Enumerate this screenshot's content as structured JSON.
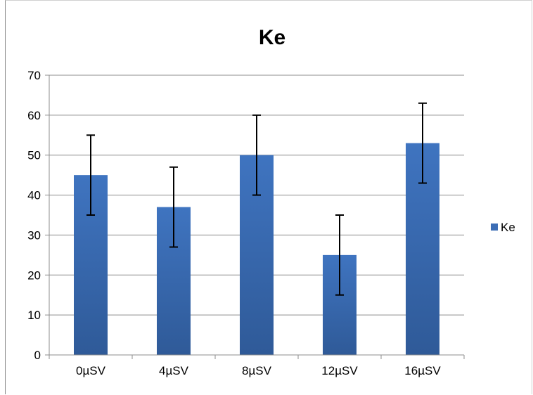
{
  "chart_data": {
    "type": "bar",
    "title": "Ke",
    "xlabel": "",
    "ylabel": "",
    "categories": [
      "0µSV",
      "4µSV",
      "8µSV",
      "12µSV",
      "16µSV"
    ],
    "series": [
      {
        "name": "Ke",
        "values": [
          45,
          37,
          50,
          25,
          53
        ],
        "error_low": [
          35,
          27,
          40,
          15,
          43
        ],
        "error_high": [
          55,
          47,
          60,
          35,
          63
        ],
        "color": "#3c6db5"
      }
    ],
    "ylim": [
      0,
      70
    ],
    "yticks": [
      "0",
      "10",
      "20",
      "30",
      "40",
      "50",
      "60",
      "70"
    ],
    "grid": true,
    "legend": "right"
  }
}
